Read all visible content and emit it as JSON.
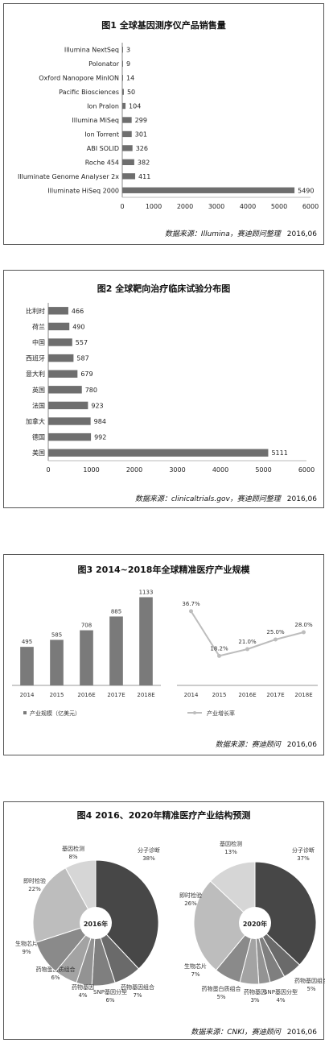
{
  "charts": [
    {
      "id": "c1",
      "title": "图1 全球基因测序仪产品销售量",
      "source": "数据来源：Illumina，赛迪顾问整理",
      "date": "2016,06"
    },
    {
      "id": "c2",
      "title": "图2 全球靶向治疗临床试验分布图",
      "source": "数据来源：clinicaltrials.gov，赛迪顾问整理",
      "date": "2016,06"
    },
    {
      "id": "c3",
      "title": "图3 2014~2018年全球精准医疗产业规模",
      "source": "数据来源：赛迪顾问",
      "date": "2016,06"
    },
    {
      "id": "c4",
      "title": "图4 2016、2020年精准医疗产业结构预测",
      "source": "数据来源：CNKI，赛迪顾问",
      "date": "2016,06"
    }
  ],
  "chart_data": [
    {
      "type": "bar",
      "orientation": "horizontal",
      "title": "图1 全球基因测序仪产品销售量",
      "categories": [
        "Illumina NextSeq",
        "Polonator",
        "Oxford Nanopore MinION",
        "Pacific Biosciences",
        "Ion Pralon",
        "Illumina MiSeq",
        "Ion Torrent",
        "ABI SOLID",
        "Roche 454",
        "Illuminate Genome Analyser 2x",
        "Illuminate HiSeq 2000"
      ],
      "values": [
        3,
        9,
        14,
        50,
        104,
        299,
        301,
        326,
        382,
        411,
        5490
      ],
      "xlim": [
        0,
        6000
      ],
      "xticks": [
        0,
        1000,
        2000,
        3000,
        4000,
        5000,
        6000
      ],
      "bar_color": "#6e6e6e"
    },
    {
      "type": "bar",
      "orientation": "horizontal",
      "title": "图2 全球靶向治疗临床试验分布图",
      "categories": [
        "比利时",
        "荷兰",
        "中国",
        "西班牙",
        "意大利",
        "英国",
        "法国",
        "加拿大",
        "德国",
        "美国"
      ],
      "values": [
        466,
        490,
        557,
        587,
        679,
        780,
        923,
        984,
        992,
        5111
      ],
      "xlim": [
        0,
        6000
      ],
      "xticks": [
        0,
        1000,
        2000,
        3000,
        4000,
        5000,
        6000
      ],
      "bar_color": "#6e6e6e"
    },
    {
      "type": "bar",
      "title": "图3 2014~2018年全球精准医疗产业规模",
      "categories": [
        "2014",
        "2015",
        "2016E",
        "2017E",
        "2018E"
      ],
      "series": [
        {
          "name": "产业规模（亿美元）",
          "values": [
            495,
            585,
            708,
            885,
            1133
          ]
        }
      ],
      "ylim": [
        0,
        1200
      ],
      "bar_color": "#7a7a7a"
    },
    {
      "type": "line",
      "title": "图3 2014~2018年全球精准医疗产业规模",
      "categories": [
        "2014",
        "2015",
        "2016E",
        "2017E",
        "2018E"
      ],
      "series": [
        {
          "name": "产业增长率",
          "values": [
            36.7,
            18.2,
            21.0,
            25.0,
            28.0
          ],
          "labels": [
            "36.7%",
            "18.2%",
            "21.0%",
            "25.0%",
            "28.0%"
          ]
        }
      ],
      "ylim": [
        10,
        40
      ],
      "line_color": "#bdbdbd"
    },
    {
      "type": "pie",
      "title": "2016年",
      "slices": [
        {
          "label": "分子诊断",
          "pct": "38%",
          "value": 38,
          "color": "#474747"
        },
        {
          "label": "药物基因组合",
          "pct": "7%",
          "value": 7,
          "color": "#6a6a6a"
        },
        {
          "label": "SNP基因分型",
          "pct": "6%",
          "value": 6,
          "color": "#7f7f7f"
        },
        {
          "label": "药物基因",
          "pct": "4%",
          "value": 4,
          "color": "#939393"
        },
        {
          "label": "药物蛋白质组合",
          "pct": "6%",
          "value": 6,
          "color": "#a3a3a3"
        },
        {
          "label": "生物芯片",
          "pct": "9%",
          "value": 9,
          "color": "#8a8a8a"
        },
        {
          "label": "即时检验",
          "pct": "22%",
          "value": 22,
          "color": "#bdbdbd"
        },
        {
          "label": "基因检测",
          "pct": "8%",
          "value": 8,
          "color": "#d6d6d6"
        }
      ]
    },
    {
      "type": "pie",
      "title": "2020年",
      "slices": [
        {
          "label": "分子诊断",
          "pct": "37%",
          "value": 37,
          "color": "#474747"
        },
        {
          "label": "药物基因组合",
          "pct": "5%",
          "value": 5,
          "color": "#6a6a6a"
        },
        {
          "label": "SNP基因分型",
          "pct": "4%",
          "value": 4,
          "color": "#7f7f7f"
        },
        {
          "label": "药物基因",
          "pct": "3%",
          "value": 3,
          "color": "#939393"
        },
        {
          "label": "药物蛋白质组合",
          "pct": "5%",
          "value": 5,
          "color": "#a3a3a3"
        },
        {
          "label": "生物芯片",
          "pct": "7%",
          "value": 7,
          "color": "#8a8a8a"
        },
        {
          "label": "即时检验",
          "pct": "26%",
          "value": 26,
          "color": "#bdbdbd"
        },
        {
          "label": "基因检测",
          "pct": "13%",
          "value": 13,
          "color": "#d6d6d6"
        }
      ]
    }
  ]
}
